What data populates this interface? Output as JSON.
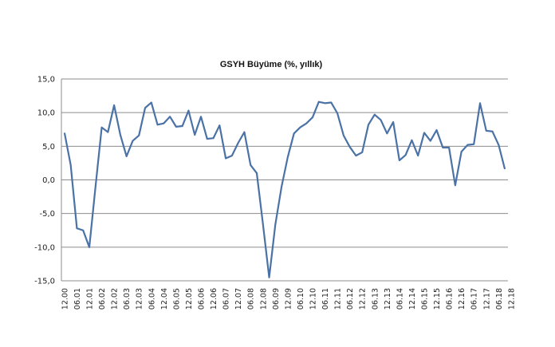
{
  "chart_data": {
    "type": "line",
    "title": "GSYH Büyüme (%, yıllık)",
    "xlabel": "",
    "ylabel": "",
    "ylim": [
      -15,
      15
    ],
    "yticks": [
      "15,0",
      "10,0",
      "5,0",
      "0,0",
      "-5,0",
      "-10,0",
      "-15,0"
    ],
    "ytick_values": [
      15,
      10,
      5,
      0,
      -5,
      -10,
      -15
    ],
    "grid": "horizontal",
    "legend": "none",
    "line_color": "#4a72a6",
    "x_tick_labels": [
      "12.00",
      "06.01",
      "12.01",
      "06.02",
      "12.02",
      "06.03",
      "12.03",
      "06.04",
      "12.04",
      "06.05",
      "12.05",
      "06.06",
      "12.06",
      "06.07",
      "12.07",
      "06.08",
      "12.08",
      "06.09",
      "12.09",
      "06.10",
      "12.10",
      "06.11",
      "12.11",
      "06.12",
      "12.12",
      "06.13",
      "12.13",
      "06.14",
      "12.14",
      "06.15",
      "12.15",
      "06.16",
      "12.16",
      "06.17",
      "12.17",
      "06.18",
      "12.18"
    ],
    "series": [
      {
        "values": [
          7.0,
          2.2,
          -7.2,
          -7.5,
          -10.0,
          -1.0,
          7.8,
          7.1,
          11.1,
          6.7,
          3.5,
          5.8,
          6.6,
          10.7,
          11.5,
          8.2,
          8.4,
          9.4,
          7.9,
          8.0,
          10.3,
          6.7,
          9.4,
          6.1,
          6.2,
          8.1,
          3.2,
          3.6,
          5.5,
          7.1,
          2.2,
          1.0,
          -6.6,
          -14.5,
          -6.6,
          -1.0,
          3.4,
          6.9,
          7.8,
          8.4,
          9.3,
          11.6,
          11.4,
          11.5,
          9.9,
          6.6,
          4.9,
          3.6,
          4.1,
          8.2,
          9.7,
          8.9,
          6.9,
          8.6,
          2.9,
          3.7,
          5.9,
          3.6,
          7.0,
          5.8,
          7.4,
          4.8,
          4.8,
          -0.8,
          4.2,
          5.2,
          5.3,
          11.4,
          7.3,
          7.2,
          5.2,
          1.6
        ]
      }
    ]
  }
}
